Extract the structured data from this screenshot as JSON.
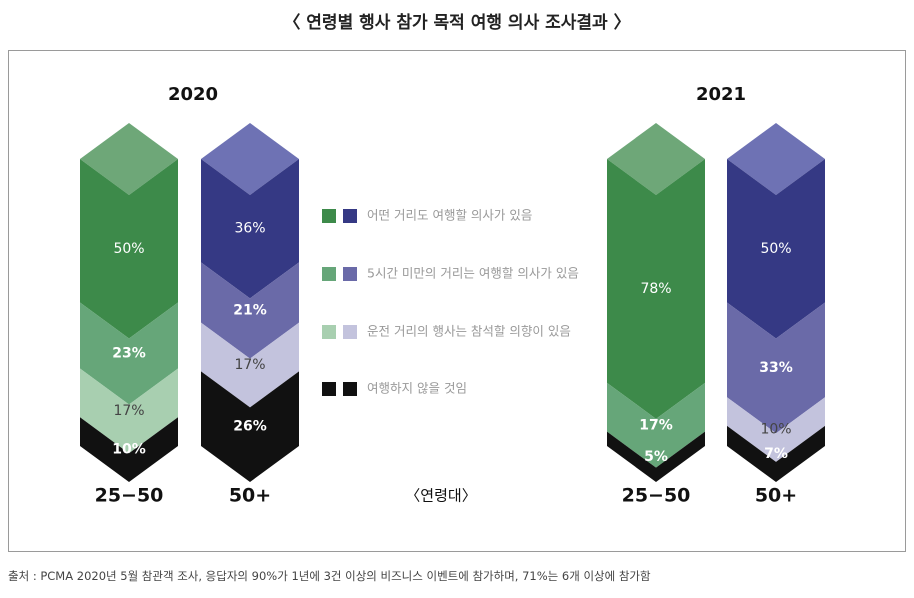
{
  "title": "〈 연령별 행사 참가 목적 여행 의사 조사결과 〉",
  "source": "출처 : PCMA 2020년 5월 참관객 조사, 응답자의 90%가 1년에 3건 이상의 비즈니스 이벤트에 참가하며, 71%는 6개 이상에 참가함",
  "center_label": "〈연령대〉",
  "colors": {
    "group_25_50": [
      "#3d8a4a",
      "#66a679",
      "#a8cfb0",
      "#111111"
    ],
    "group_50_plus": [
      "#353984",
      "#6a6aa8",
      "#c3c3dd",
      "#111111"
    ],
    "top_25_50": "#6ea778",
    "top_50_plus": "#6e72b4",
    "label_light": "#dde8dd",
    "label_dark": "#444444"
  },
  "chart_data": {
    "type": "bar",
    "stacked": true,
    "years": [
      "2020",
      "2021"
    ],
    "categories": [
      "25−50",
      "50+"
    ],
    "legend_position": "center",
    "series": [
      {
        "name": "어떤 거리도 여행할 의사가 있음",
        "values_2020": [
          50,
          36
        ],
        "values_2021": [
          78,
          50
        ]
      },
      {
        "name": "5시간 미만의 거리는 여행할 의사가 있음",
        "values_2020": [
          23,
          21
        ],
        "values_2021": [
          17,
          33
        ]
      },
      {
        "name": "운전 거리의 행사는 참석할 의향이 있음",
        "values_2020": [
          17,
          17
        ],
        "values_2021": [
          0,
          10
        ]
      },
      {
        "name": "여행하지 않을 것임",
        "values_2020": [
          10,
          26
        ],
        "values_2021": [
          5,
          7
        ]
      }
    ]
  }
}
